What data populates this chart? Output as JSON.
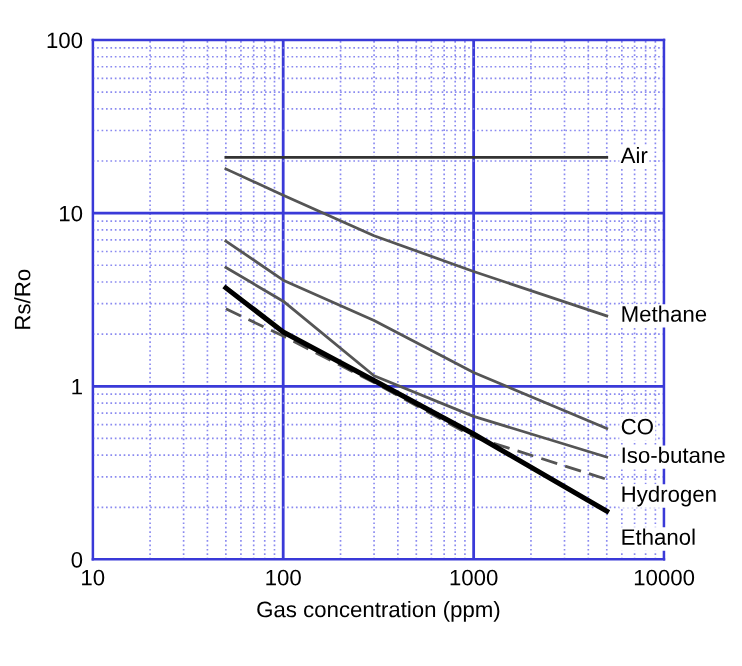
{
  "chart_data": {
    "type": "line",
    "xlabel": "Gas concentration (ppm)",
    "ylabel": "Rs/Ro",
    "log": "xy",
    "grid": true,
    "legend": false,
    "marker": "none",
    "xlim": [
      10,
      10000
    ],
    "xticks": [
      10,
      {
        "value": 20,
        "label": null
      },
      {
        "value": 30,
        "label": null
      },
      {
        "value": 40,
        "label": null
      },
      {
        "value": 50,
        "label": null
      },
      {
        "value": 60,
        "label": null
      },
      {
        "value": 70,
        "label": null
      },
      {
        "value": 80,
        "label": null
      },
      {
        "value": 90,
        "label": null
      },
      100,
      {
        "value": 200,
        "label": null
      },
      {
        "value": 300,
        "label": null
      },
      {
        "value": 400,
        "label": null
      },
      {
        "value": 500,
        "label": null
      },
      {
        "value": 600,
        "label": null
      },
      {
        "value": 700,
        "label": null
      },
      {
        "value": 800,
        "label": null
      },
      {
        "value": 900,
        "label": null
      },
      1000,
      {
        "value": 2000,
        "label": null
      },
      {
        "value": 3000,
        "label": null
      },
      {
        "value": 4000,
        "label": null
      },
      {
        "value": 5000,
        "label": null
      },
      {
        "value": 6000,
        "label": null
      },
      {
        "value": 7000,
        "label": null
      },
      {
        "value": 8000,
        "label": null
      },
      {
        "value": 9000,
        "label": null
      },
      10000
    ],
    "ylim": [
      0.1,
      100
    ],
    "yticks": [
      {
        "value": 0.1,
        "label": "0"
      },
      {
        "value": 0.2,
        "label": null
      },
      {
        "value": 0.3,
        "label": null
      },
      {
        "value": 0.4,
        "label": null
      },
      {
        "value": 0.5,
        "label": null
      },
      {
        "value": 0.6,
        "label": null
      },
      {
        "value": 0.7,
        "label": null
      },
      {
        "value": 0.8,
        "label": null
      },
      {
        "value": 0.9,
        "label": null
      },
      1,
      {
        "value": 2,
        "label": null
      },
      {
        "value": 3,
        "label": null
      },
      {
        "value": 4,
        "label": null
      },
      {
        "value": 5,
        "label": null
      },
      {
        "value": 6,
        "label": null
      },
      {
        "value": 7,
        "label": null
      },
      {
        "value": 8,
        "label": null
      },
      {
        "value": 9,
        "label": null
      },
      10,
      {
        "value": 20,
        "label": null
      },
      {
        "value": 30,
        "label": null
      },
      {
        "value": 40,
        "label": null
      },
      {
        "value": 50,
        "label": null
      },
      {
        "value": 60,
        "label": null
      },
      {
        "value": 70,
        "label": null
      },
      {
        "value": 80,
        "label": null
      },
      {
        "value": 90,
        "label": null
      },
      100
    ],
    "series": [
      {
        "name": "Air",
        "color": "#333333",
        "line_style": "solid",
        "x": [
          50,
          5000
        ],
        "values": [
          21,
          21
        ]
      },
      {
        "name": "Methane",
        "color": "#555555",
        "line_style": "solid",
        "x": [
          50,
          100,
          300,
          1000,
          5000
        ],
        "values": [
          18,
          12.7,
          7.4,
          4.6,
          2.55
        ]
      },
      {
        "name": "CO",
        "color": "#555555",
        "line_style": "solid",
        "x": [
          50,
          100,
          300,
          1000,
          5000
        ],
        "values": [
          6.9,
          4.1,
          2.4,
          1.2,
          0.57
        ]
      },
      {
        "name": "Iso-butane",
        "color": "#555555",
        "line_style": "solid",
        "x": [
          50,
          100,
          300,
          1000,
          5000
        ],
        "values": [
          4.85,
          3.1,
          1.15,
          0.67,
          0.39
        ]
      },
      {
        "name": "Hydrogen",
        "color": "#555555",
        "line_style": "dashed",
        "x": [
          50,
          100,
          300,
          1000,
          5000
        ],
        "values": [
          2.8,
          1.95,
          1.05,
          0.51,
          0.29
        ]
      },
      {
        "name": "Ethanol",
        "color": "#000000",
        "line_style": "solid",
        "x": [
          50,
          100,
          300,
          1000,
          5000
        ],
        "values": [
          3.7,
          2.06,
          1.08,
          0.53,
          0.19
        ]
      }
    ]
  }
}
